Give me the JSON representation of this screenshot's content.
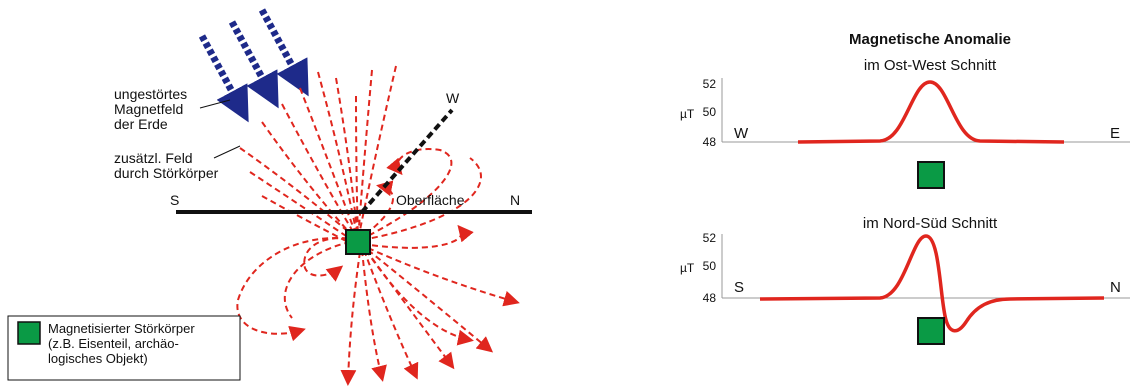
{
  "left_diagram": {
    "earth_field_label": [
      "ungestörtes",
      "Magnetfeld",
      "der Erde"
    ],
    "extra_field_label": [
      "zusätzl. Feld",
      "durch Störkörper"
    ],
    "surface_label": "Oberfläche",
    "south_label": "S",
    "north_label": "N",
    "west_label": "W",
    "legend": [
      "Magnetisierter Störkörper",
      "(z.B. Eisenteil, archäo-",
      "logisches Objekt)"
    ]
  },
  "right_diagram": {
    "title": "Magnetische Anomalie",
    "profiles": [
      {
        "subtitle": "im Ost-West Schnitt",
        "left_label": "W",
        "right_label": "E",
        "unit": "µT",
        "ticks": [
          "52",
          "50",
          "48"
        ],
        "y_values": [
          52,
          50,
          48
        ]
      },
      {
        "subtitle": "im Nord-Süd Schnitt",
        "left_label": "S",
        "right_label": "N",
        "unit": "µT",
        "ticks": [
          "52",
          "50",
          "48"
        ],
        "y_values": [
          52,
          50,
          48
        ]
      }
    ]
  },
  "colors": {
    "field_line": "#e0261e",
    "earth_arrow": "#1e2a8a",
    "body_fill": "#0a9a45",
    "curve": "#e0261e"
  }
}
